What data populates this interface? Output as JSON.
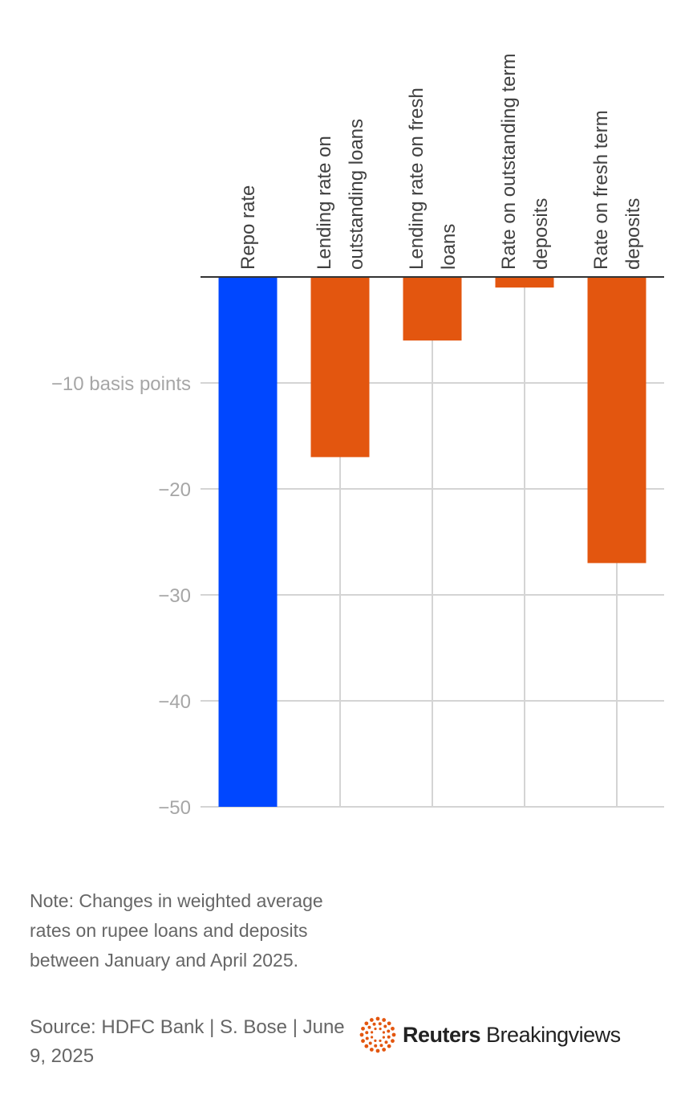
{
  "chart_data": {
    "type": "bar",
    "categories": [
      [
        "Repo rate"
      ],
      [
        "Lending rate on",
        "outstanding loans"
      ],
      [
        "Lending rate on fresh",
        "loans"
      ],
      [
        "Rate on outstanding term",
        "deposits"
      ],
      [
        "Rate on fresh term",
        "deposits"
      ]
    ],
    "values": [
      -50,
      -17,
      -6,
      -1,
      -27
    ],
    "bar_colors": [
      "#0047ff",
      "#e3560f",
      "#e3560f",
      "#e3560f",
      "#e3560f"
    ],
    "ylim": [
      -50,
      0
    ],
    "yticks": [
      -10,
      -20,
      -30,
      -40,
      -50
    ],
    "ytick_labels": [
      "−10 basis points",
      "−20",
      "−30",
      "−40",
      "−50"
    ],
    "grid": true,
    "orientation": "vertical bars, category labels rotated above zero line"
  },
  "note": "Note: Changes in weighted average rates on rupee loans and deposits between January and April 2025.",
  "source": "Source: HDFC Bank | S. Bose | June 9, 2025",
  "logo": {
    "bold": "Reuters",
    "regular": "Breakingviews",
    "accent_color": "#e3560f"
  }
}
